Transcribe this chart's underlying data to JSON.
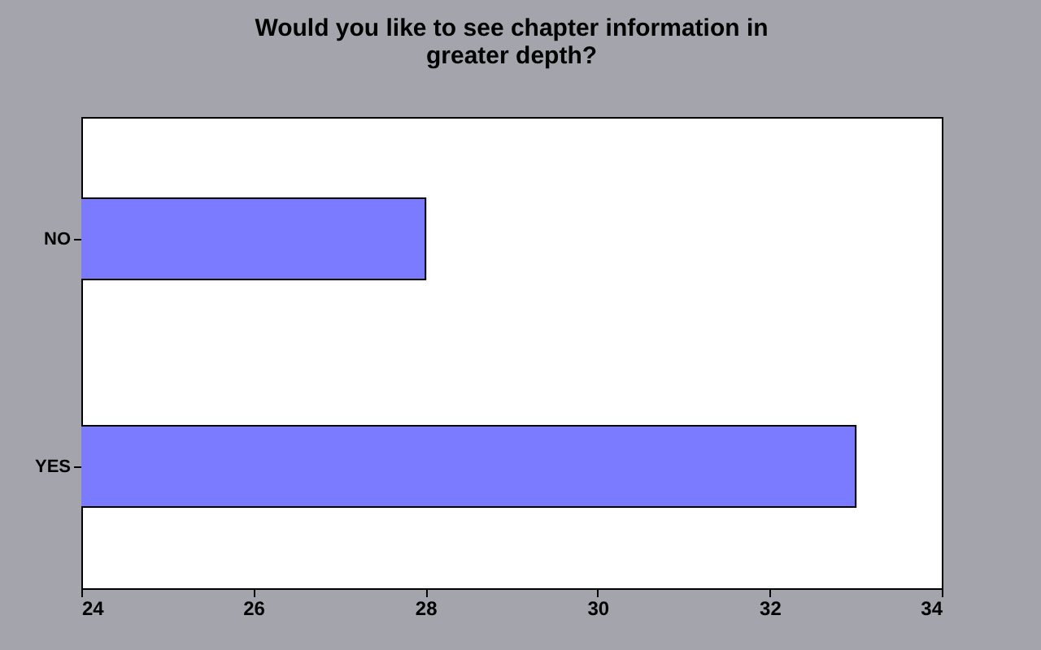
{
  "chart_data": {
    "type": "bar",
    "orientation": "horizontal",
    "title": "Would you like to see chapter information in greater depth?",
    "categories": [
      "NO",
      "YES"
    ],
    "values": [
      28,
      33
    ],
    "color": "#7b7bff",
    "xlim": [
      24,
      34
    ],
    "xticks": [
      24,
      26,
      28,
      30,
      32,
      34
    ],
    "grid": false
  }
}
